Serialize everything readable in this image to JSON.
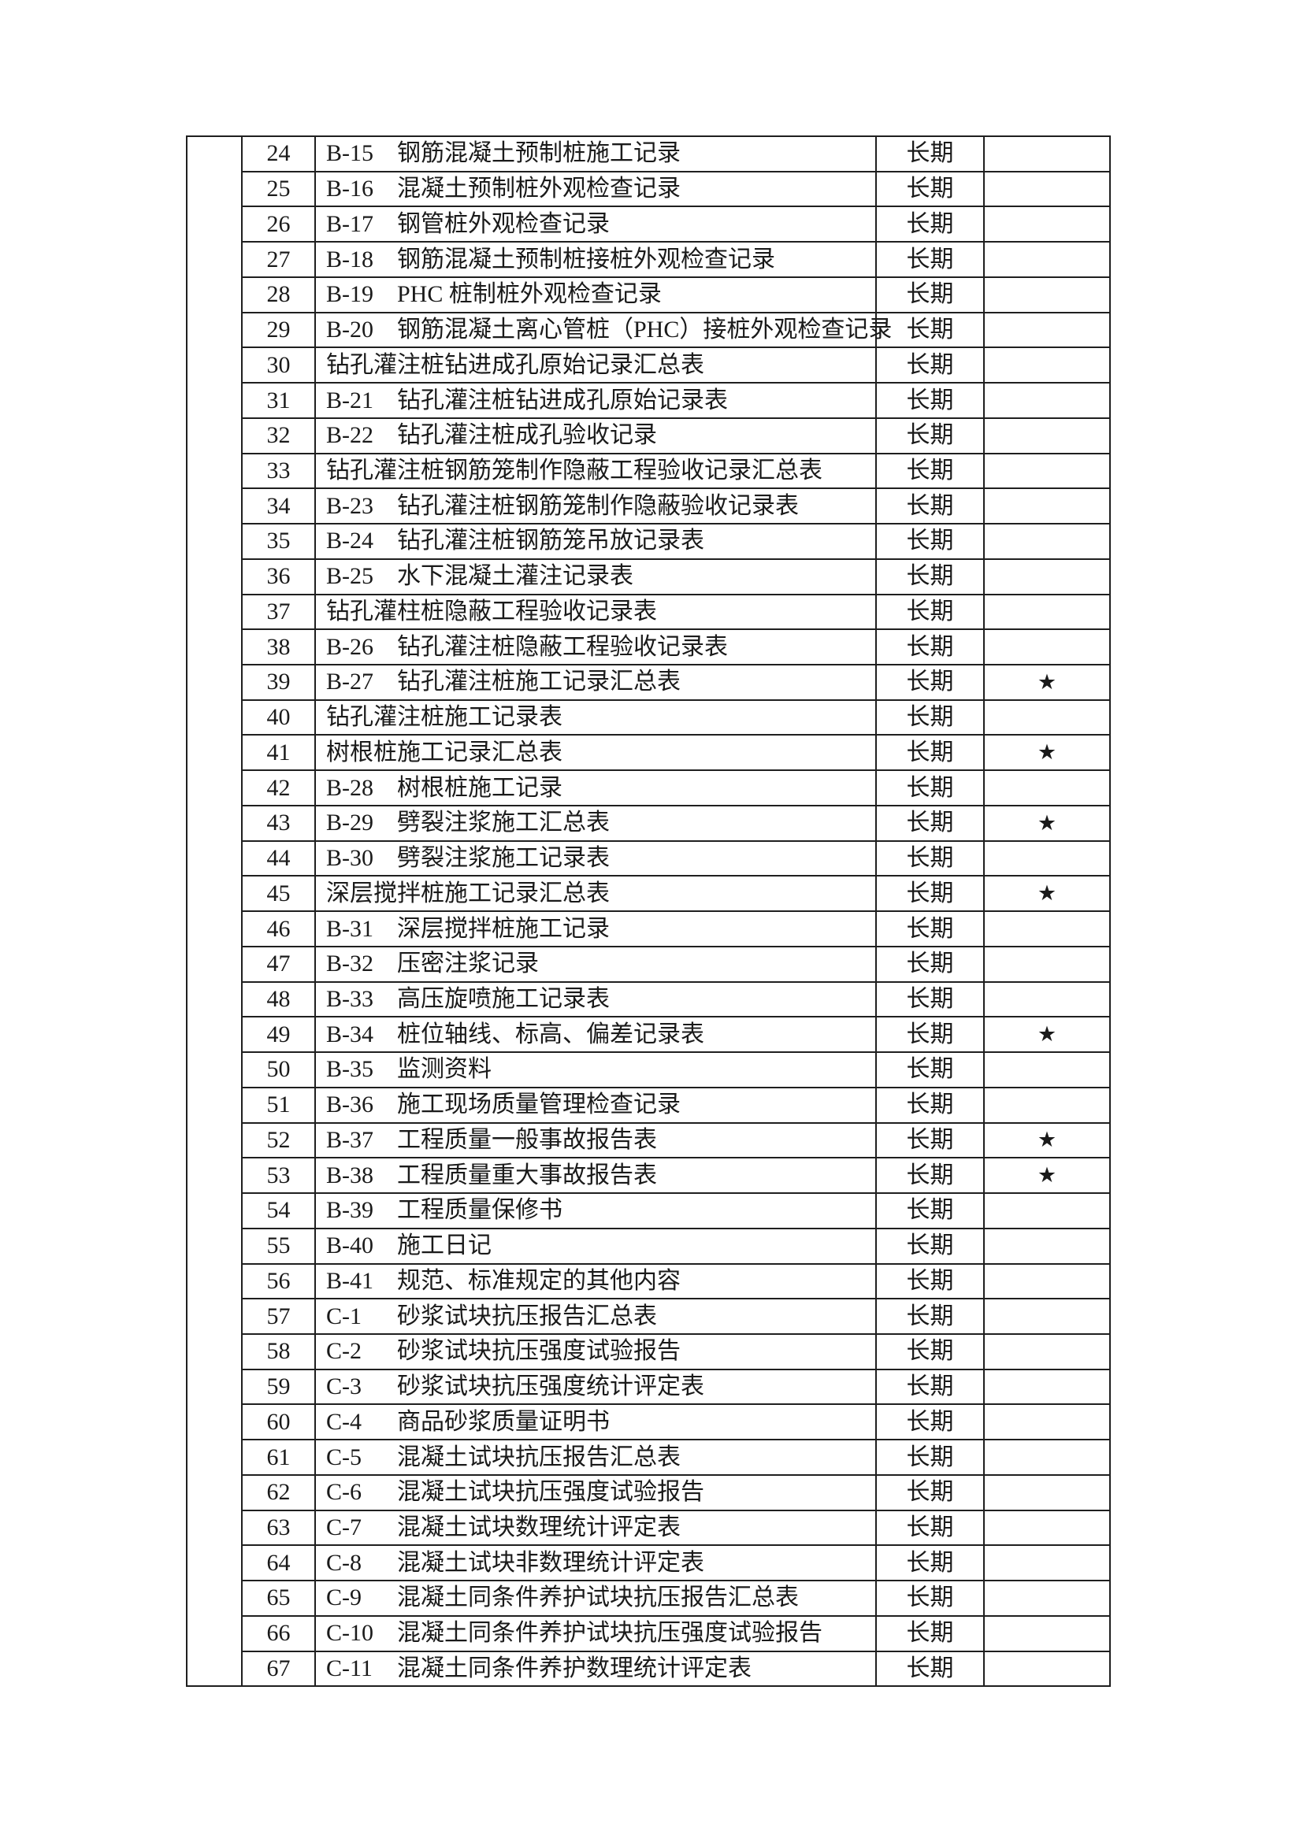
{
  "page": {
    "background_color": "#ffffff",
    "text_color": "#1a1a1a",
    "border_color": "#1f1f1f"
  },
  "table": {
    "star_symbol": "★",
    "columns": [
      "category-spanner",
      "row-number",
      "item-name",
      "retention-period",
      "star-mark"
    ],
    "rows": [
      {
        "num": "24",
        "code": "B-15",
        "title": "钢筋混凝土预制桩施工记录",
        "period": "长期",
        "star": false
      },
      {
        "num": "25",
        "code": "B-16",
        "title": "混凝土预制桩外观检查记录",
        "period": "长期",
        "star": false
      },
      {
        "num": "26",
        "code": "B-17",
        "title": "钢管桩外观检查记录",
        "period": "长期",
        "star": false
      },
      {
        "num": "27",
        "code": "B-18",
        "title": "钢筋混凝土预制桩接桩外观检查记录",
        "period": "长期",
        "star": false
      },
      {
        "num": "28",
        "code": "B-19",
        "title": "PHC 桩制桩外观检查记录",
        "period": "长期",
        "star": false
      },
      {
        "num": "29",
        "code": "B-20",
        "title": "钢筋混凝土离心管桩（PHC）接桩外观检查记录",
        "period": "长期",
        "star": false
      },
      {
        "num": "30",
        "code": "",
        "title": "钻孔灌注桩钻进成孔原始记录汇总表",
        "period": "长期",
        "star": false
      },
      {
        "num": "31",
        "code": "B-21",
        "title": "钻孔灌注桩钻进成孔原始记录表",
        "period": "长期",
        "star": false
      },
      {
        "num": "32",
        "code": "B-22",
        "title": "钻孔灌注桩成孔验收记录",
        "period": "长期",
        "star": false
      },
      {
        "num": "33",
        "code": "",
        "title": "钻孔灌注桩钢筋笼制作隐蔽工程验收记录汇总表",
        "period": "长期",
        "star": false
      },
      {
        "num": "34",
        "code": "B-23",
        "title": "钻孔灌注桩钢筋笼制作隐蔽验收记录表",
        "period": "长期",
        "star": false
      },
      {
        "num": "35",
        "code": "B-24",
        "title": "钻孔灌注桩钢筋笼吊放记录表",
        "period": "长期",
        "star": false
      },
      {
        "num": "36",
        "code": "B-25",
        "title": "水下混凝土灌注记录表",
        "period": "长期",
        "star": false
      },
      {
        "num": "37",
        "code": "",
        "title": "钻孔灌柱桩隐蔽工程验收记录表",
        "period": "长期",
        "star": false
      },
      {
        "num": "38",
        "code": "B-26",
        "title": "钻孔灌注桩隐蔽工程验收记录表",
        "period": "长期",
        "star": false
      },
      {
        "num": "39",
        "code": "B-27",
        "title": "钻孔灌注桩施工记录汇总表",
        "period": "长期",
        "star": true
      },
      {
        "num": "40",
        "code": "",
        "title": "钻孔灌注桩施工记录表",
        "period": "长期",
        "star": false
      },
      {
        "num": "41",
        "code": "",
        "title": "树根桩施工记录汇总表",
        "period": "长期",
        "star": true
      },
      {
        "num": "42",
        "code": "B-28",
        "title": "树根桩施工记录",
        "period": "长期",
        "star": false
      },
      {
        "num": "43",
        "code": "B-29",
        "title": "劈裂注浆施工汇总表",
        "period": "长期",
        "star": true
      },
      {
        "num": "44",
        "code": "B-30",
        "title": "劈裂注浆施工记录表",
        "period": "长期",
        "star": false
      },
      {
        "num": "45",
        "code": "",
        "title": "深层搅拌桩施工记录汇总表",
        "period": "长期",
        "star": true
      },
      {
        "num": "46",
        "code": "B-31",
        "title": "深层搅拌桩施工记录",
        "period": "长期",
        "star": false
      },
      {
        "num": "47",
        "code": "B-32",
        "title": "压密注浆记录",
        "period": "长期",
        "star": false
      },
      {
        "num": "48",
        "code": "B-33",
        "title": "高压旋喷施工记录表",
        "period": "长期",
        "star": false
      },
      {
        "num": "49",
        "code": "B-34",
        "title": "桩位轴线、标高、偏差记录表",
        "period": "长期",
        "star": true
      },
      {
        "num": "50",
        "code": "B-35",
        "title": "监测资料",
        "period": "长期",
        "star": false
      },
      {
        "num": "51",
        "code": "B-36",
        "title": "施工现场质量管理检查记录",
        "period": "长期",
        "star": false
      },
      {
        "num": "52",
        "code": "B-37",
        "title": "工程质量一般事故报告表",
        "period": "长期",
        "star": true
      },
      {
        "num": "53",
        "code": "B-38",
        "title": "工程质量重大事故报告表",
        "period": "长期",
        "star": true
      },
      {
        "num": "54",
        "code": "B-39",
        "title": "工程质量保修书",
        "period": "长期",
        "star": false
      },
      {
        "num": "55",
        "code": "B-40",
        "title": "施工日记",
        "period": "长期",
        "star": false
      },
      {
        "num": "56",
        "code": "B-41",
        "title": "规范、标准规定的其他内容",
        "period": "长期",
        "star": false
      },
      {
        "num": "57",
        "code": "C-1",
        "title": "砂浆试块抗压报告汇总表",
        "period": "长期",
        "star": false
      },
      {
        "num": "58",
        "code": "C-2",
        "title": "砂浆试块抗压强度试验报告",
        "period": "长期",
        "star": false
      },
      {
        "num": "59",
        "code": "C-3",
        "title": "砂浆试块抗压强度统计评定表",
        "period": "长期",
        "star": false
      },
      {
        "num": "60",
        "code": "C-4",
        "title": "商品砂浆质量证明书",
        "period": "长期",
        "star": false
      },
      {
        "num": "61",
        "code": "C-5",
        "title": "混凝土试块抗压报告汇总表",
        "period": "长期",
        "star": false
      },
      {
        "num": "62",
        "code": "C-6",
        "title": "混凝土试块抗压强度试验报告",
        "period": "长期",
        "star": false
      },
      {
        "num": "63",
        "code": "C-7",
        "title": "混凝土试块数理统计评定表",
        "period": "长期",
        "star": false
      },
      {
        "num": "64",
        "code": "C-8",
        "title": "混凝土试块非数理统计评定表",
        "period": "长期",
        "star": false
      },
      {
        "num": "65",
        "code": "C-9",
        "title": "混凝土同条件养护试块抗压报告汇总表",
        "period": "长期",
        "star": false
      },
      {
        "num": "66",
        "code": "C-10",
        "title": "混凝土同条件养护试块抗压强度试验报告",
        "period": "长期",
        "star": false
      },
      {
        "num": "67",
        "code": "C-11",
        "title": "混凝土同条件养护数理统计评定表",
        "period": "长期",
        "star": false
      }
    ]
  }
}
